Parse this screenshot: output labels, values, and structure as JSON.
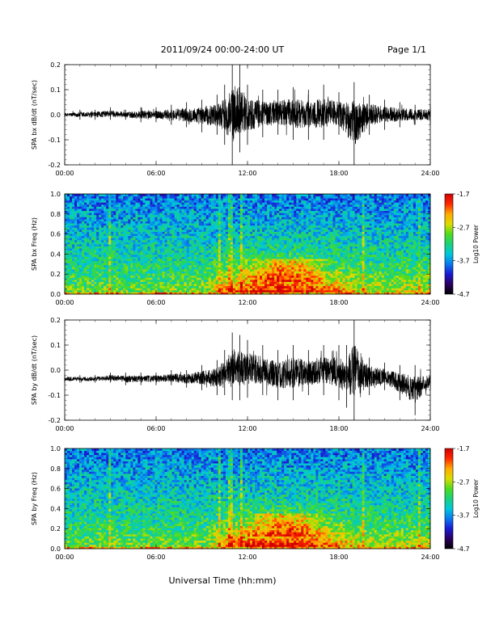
{
  "header": {
    "title": "2011/09/24  00:00-24:00 UT",
    "page": "Page 1/1"
  },
  "footer": {
    "xlabel": "Universal Time (hh:mm)"
  },
  "colors": {
    "trace": "#000000",
    "colormap": [
      "#000000",
      "#2a0060",
      "#1a1ad2",
      "#0a78f0",
      "#00c8dc",
      "#19d27a",
      "#50dc1e",
      "#dcdc00",
      "#ffaa00",
      "#ff2800",
      "#d20000"
    ]
  },
  "chart_data": [
    {
      "type": "line",
      "ylabel": "SPA bx dB/dt (nT/sec)",
      "xlim": [
        0,
        24
      ],
      "ylim": [
        -0.2,
        0.2
      ],
      "x_ticks": [
        "00:00",
        "06:00",
        "12:00",
        "18:00",
        "24:00"
      ],
      "y_ticks": [
        "-0.2",
        "-0.1",
        "0.0",
        "0.1",
        "0.2"
      ],
      "y_tick_values": [
        -0.2,
        -0.1,
        0.0,
        0.1,
        0.2
      ],
      "series": [
        {
          "x": [
            0,
            1,
            2,
            3,
            4,
            5,
            6,
            7,
            8,
            9,
            10,
            10.5,
            11,
            11.5,
            12,
            13,
            14,
            15,
            16,
            17,
            18,
            19,
            20,
            21,
            22,
            23,
            24
          ],
          "max": [
            0.01,
            0.02,
            0.02,
            0.03,
            0.02,
            0.03,
            0.03,
            0.04,
            0.05,
            0.06,
            0.08,
            0.12,
            0.2,
            0.2,
            0.12,
            0.1,
            0.1,
            0.11,
            0.1,
            0.12,
            0.09,
            0.13,
            0.08,
            0.06,
            0.05,
            0.04,
            0.04
          ],
          "min": [
            -0.01,
            -0.02,
            -0.02,
            -0.02,
            -0.02,
            -0.03,
            -0.03,
            -0.04,
            -0.05,
            -0.07,
            -0.08,
            -0.12,
            -0.2,
            -0.15,
            -0.12,
            -0.09,
            -0.08,
            -0.1,
            -0.1,
            -0.1,
            -0.08,
            -0.2,
            -0.08,
            -0.06,
            -0.05,
            -0.04,
            -0.04
          ]
        }
      ]
    },
    {
      "type": "heatmap",
      "ylabel": "SPA bx Freq (Hz)",
      "xlim": [
        0,
        24
      ],
      "ylim": [
        0.0,
        1.0
      ],
      "x_ticks": [
        "00:00",
        "06:00",
        "12:00",
        "18:00",
        "24:00"
      ],
      "y_ticks": [
        "0.0",
        "0.2",
        "0.4",
        "0.6",
        "0.8",
        "1.0"
      ],
      "y_tick_values": [
        0.0,
        0.2,
        0.4,
        0.6,
        0.8,
        1.0
      ],
      "colorbar": {
        "label": "Log10 Power",
        "range": [
          -4.7,
          -1.7
        ],
        "ticks": [
          "-1.7",
          "-2.7",
          "-3.7",
          "-4.7"
        ],
        "tick_values": [
          -1.7,
          -2.7,
          -3.7,
          -4.7
        ]
      }
    },
    {
      "type": "line",
      "ylabel": "SPA by dB/dt (nT/sec)",
      "xlim": [
        0,
        24
      ],
      "ylim": [
        -0.2,
        0.2
      ],
      "x_ticks": [
        "00:00",
        "06:00",
        "12:00",
        "18:00",
        "24:00"
      ],
      "y_ticks": [
        "-0.2",
        "-0.1",
        "0.0",
        "0.1",
        "0.2"
      ],
      "y_tick_values": [
        -0.2,
        -0.1,
        0.0,
        0.1,
        0.2
      ],
      "series": [
        {
          "x": [
            0,
            1,
            2,
            3,
            4,
            5,
            6,
            7,
            8,
            9,
            10,
            10.5,
            11,
            11.5,
            12,
            13,
            14,
            15,
            16,
            17,
            18,
            18.5,
            19,
            20,
            21,
            22,
            23,
            24
          ],
          "max": [
            -0.02,
            -0.02,
            -0.02,
            -0.01,
            -0.01,
            -0.01,
            -0.01,
            0.0,
            0.0,
            0.02,
            0.04,
            0.08,
            0.15,
            0.14,
            0.12,
            0.1,
            0.08,
            0.1,
            0.08,
            0.1,
            0.1,
            0.1,
            0.2,
            0.05,
            0.03,
            0.02,
            0.02,
            0.0
          ],
          "min": [
            -0.05,
            -0.05,
            -0.05,
            -0.05,
            -0.06,
            -0.06,
            -0.06,
            -0.06,
            -0.07,
            -0.08,
            -0.1,
            -0.1,
            -0.12,
            -0.12,
            -0.11,
            -0.1,
            -0.12,
            -0.12,
            -0.1,
            -0.1,
            -0.12,
            -0.15,
            -0.2,
            -0.1,
            -0.08,
            -0.12,
            -0.18,
            -0.08
          ]
        }
      ]
    },
    {
      "type": "heatmap",
      "ylabel": "SPA by Freq (Hz)",
      "xlim": [
        0,
        24
      ],
      "ylim": [
        0.0,
        1.0
      ],
      "x_ticks": [
        "00:00",
        "06:00",
        "12:00",
        "18:00",
        "24:00"
      ],
      "y_ticks": [
        "0.0",
        "0.2",
        "0.4",
        "0.6",
        "0.8",
        "1.0"
      ],
      "y_tick_values": [
        0.0,
        0.2,
        0.4,
        0.6,
        0.8,
        1.0
      ],
      "colorbar": {
        "label": "Log10 Power",
        "range": [
          -4.7,
          -1.7
        ],
        "ticks": [
          "-1.7",
          "-2.7",
          "-3.7",
          "-4.7"
        ],
        "tick_values": [
          -1.7,
          -2.7,
          -3.7,
          -4.7
        ]
      }
    }
  ]
}
